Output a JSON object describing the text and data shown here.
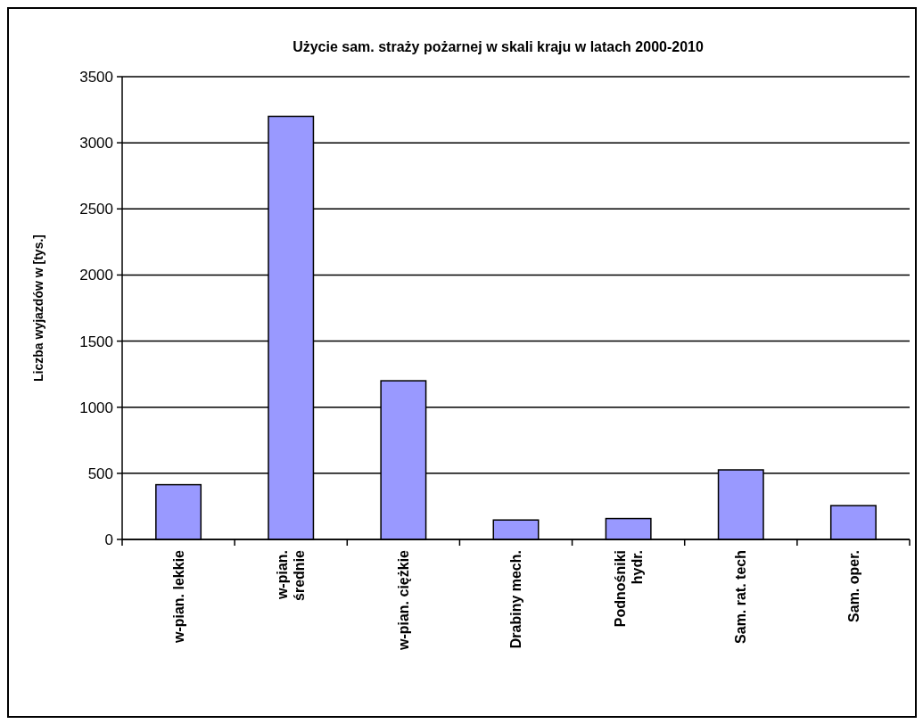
{
  "chart_data": {
    "type": "bar",
    "title": "Użycie sam. straży pożarnej w skali kraju w latach 2000-2010",
    "ylabel": "Liczba wyjazdów w [tys.]",
    "categories": [
      "w-pian. lekkie",
      "w-pian.\nśrednie",
      "w-pian. ciężkie",
      "Drabiny mech.",
      "Podnośniki\nhydr.",
      "Sam. rat. tech",
      "Sam. oper."
    ],
    "values": [
      414,
      3200,
      1200,
      147,
      158,
      526,
      256
    ],
    "color": "#9999ff",
    "ylim": [
      0,
      3500
    ],
    "yticks": [
      0,
      500,
      1000,
      1500,
      2000,
      2500,
      3000,
      3500
    ],
    "grid": "y"
  }
}
